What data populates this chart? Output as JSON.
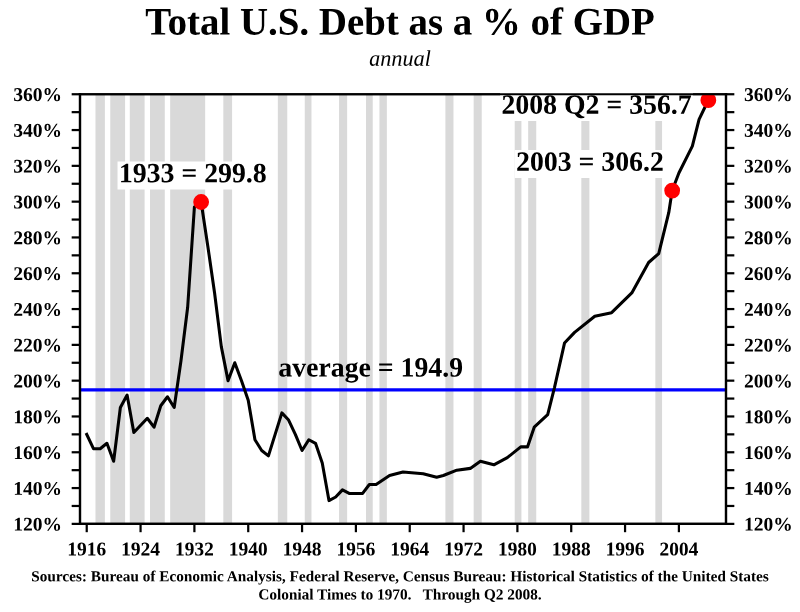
{
  "chart_data": {
    "type": "line",
    "title": "Total U.S. Debt as a % of GDP",
    "subtitle": "annual",
    "x": [
      1916,
      1917,
      1918,
      1919,
      1920,
      1921,
      1922,
      1923,
      1925,
      1926,
      1927,
      1928,
      1929,
      1930,
      1931,
      1932,
      1933,
      1934,
      1935,
      1936,
      1937,
      1938,
      1939,
      1940,
      1941,
      1942,
      1943,
      1944,
      1945,
      1946,
      1947,
      1948,
      1949,
      1950,
      1951,
      1952,
      1953,
      1954,
      1955,
      1957,
      1958,
      1959,
      1961,
      1963,
      1966,
      1968,
      1969,
      1971,
      1973,
      1974.5,
      1976.5,
      1978.5,
      1980.5,
      1981.5,
      1982.5,
      1984.5,
      1985.5,
      1987,
      1988.5,
      1991.5,
      1994,
      1997,
      1999.5,
      2001,
      2002.5,
      2003,
      2004,
      2006,
      2007,
      2008.375
    ],
    "series": [
      {
        "color": "#000000",
        "values": [
          170,
          162,
          162,
          165,
          155,
          185,
          192,
          171,
          179,
          174,
          186,
          191,
          185,
          211,
          241,
          297,
          299.8,
          275,
          249,
          219,
          200,
          210,
          200,
          189,
          167,
          161,
          158,
          170,
          182,
          178,
          170,
          161,
          167,
          165,
          154,
          133,
          135,
          139,
          137,
          137,
          142,
          142,
          147,
          149,
          148,
          146,
          147,
          150,
          151,
          155,
          153,
          157,
          163,
          163,
          174,
          181,
          196,
          221,
          227,
          236,
          238,
          249,
          266,
          271,
          294,
          306.2,
          316,
          331,
          346,
          356.7
        ]
      },
      {
        "type": "scatter",
        "color": "#ff0000",
        "x": [
          1933,
          2003,
          2008.375
        ],
        "values": [
          299.8,
          306.2,
          356.7
        ],
        "marker": "circle"
      }
    ],
    "xlim": [
      1915,
      2011
    ],
    "xticks": [
      1916,
      1924,
      1932,
      1940,
      1948,
      1956,
      1964,
      1972,
      1980,
      1988,
      1996,
      2004
    ],
    "ylim": [
      120,
      360
    ],
    "yticks": [
      {
        "value": 120,
        "label": "120%"
      },
      {
        "value": 130,
        "label": null
      },
      {
        "value": 140,
        "label": "140%"
      },
      {
        "value": 150,
        "label": null
      },
      {
        "value": 160,
        "label": "160%"
      },
      {
        "value": 170,
        "label": null
      },
      {
        "value": 180,
        "label": "180%"
      },
      {
        "value": 190,
        "label": null
      },
      {
        "value": 200,
        "label": "200%"
      },
      {
        "value": 210,
        "label": null
      },
      {
        "value": 220,
        "label": "220%"
      },
      {
        "value": 230,
        "label": null
      },
      {
        "value": 240,
        "label": "240%"
      },
      {
        "value": 250,
        "label": null
      },
      {
        "value": 260,
        "label": "260%"
      },
      {
        "value": 270,
        "label": null
      },
      {
        "value": 280,
        "label": "280%"
      },
      {
        "value": 290,
        "label": null
      },
      {
        "value": 300,
        "label": "300%"
      },
      {
        "value": 310,
        "label": null
      },
      {
        "value": 320,
        "label": "320%"
      },
      {
        "value": 330,
        "label": null
      },
      {
        "value": 340,
        "label": "340%"
      },
      {
        "value": 350,
        "label": null
      },
      {
        "value": 360,
        "label": "360%"
      }
    ],
    "y2lim": [
      120,
      360
    ],
    "y2ticks": [
      {
        "value": 120,
        "label": "120%"
      },
      {
        "value": 130,
        "label": null
      },
      {
        "value": 140,
        "label": "140%"
      },
      {
        "value": 150,
        "label": null
      },
      {
        "value": 160,
        "label": "160%"
      },
      {
        "value": 170,
        "label": null
      },
      {
        "value": 180,
        "label": "180%"
      },
      {
        "value": 190,
        "label": null
      },
      {
        "value": 200,
        "label": "200%"
      },
      {
        "value": 210,
        "label": null
      },
      {
        "value": 220,
        "label": "220%"
      },
      {
        "value": 230,
        "label": null
      },
      {
        "value": 240,
        "label": "240%"
      },
      {
        "value": 250,
        "label": null
      },
      {
        "value": 260,
        "label": "260%"
      },
      {
        "value": 270,
        "label": null
      },
      {
        "value": 280,
        "label": "280%"
      },
      {
        "value": 290,
        "label": null
      },
      {
        "value": 300,
        "label": "300%"
      },
      {
        "value": 310,
        "label": null
      },
      {
        "value": 320,
        "label": "320%"
      },
      {
        "value": 330,
        "label": null
      },
      {
        "value": 340,
        "label": "340%"
      },
      {
        "value": 350,
        "label": null
      },
      {
        "value": 360,
        "label": "360%"
      }
    ],
    "ref_lines": [
      {
        "axis": "y",
        "value": 194.9,
        "label": "average = 194.9",
        "color": "#0000ff"
      }
    ],
    "bands": [
      {
        "axis": "x",
        "from": 1917.3,
        "to": 1918.7,
        "color": "#d9d9d9"
      },
      {
        "axis": "x",
        "from": 1919.5,
        "to": 1921.7,
        "color": "#d9d9d9"
      },
      {
        "axis": "x",
        "from": 1922.4,
        "to": 1924.6,
        "color": "#d9d9d9"
      },
      {
        "axis": "x",
        "from": 1925.4,
        "to": 1927.6,
        "color": "#d9d9d9"
      },
      {
        "axis": "x",
        "from": 1928.4,
        "to": 1933.6,
        "color": "#d9d9d9"
      },
      {
        "axis": "x",
        "from": 1936.3,
        "to": 1937.6,
        "color": "#d9d9d9"
      },
      {
        "axis": "x",
        "from": 1944.4,
        "to": 1945.8,
        "color": "#d9d9d9"
      },
      {
        "axis": "x",
        "from": 1948.4,
        "to": 1949.4,
        "color": "#d9d9d9"
      },
      {
        "axis": "x",
        "from": 1953.5,
        "to": 1954.7,
        "color": "#d9d9d9"
      },
      {
        "axis": "x",
        "from": 1957.5,
        "to": 1958.5,
        "color": "#d9d9d9"
      },
      {
        "axis": "x",
        "from": 1959.5,
        "to": 1960.6,
        "color": "#d9d9d9"
      },
      {
        "axis": "x",
        "from": 1969.3,
        "to": 1970.5,
        "color": "#d9d9d9"
      },
      {
        "axis": "x",
        "from": 1973.5,
        "to": 1974.7,
        "color": "#d9d9d9"
      },
      {
        "axis": "x",
        "from": 1979.6,
        "to": 1980.6,
        "color": "#d9d9d9"
      },
      {
        "axis": "x",
        "from": 1981.6,
        "to": 1982.8,
        "color": "#d9d9d9"
      },
      {
        "axis": "x",
        "from": 1989.5,
        "to": 1990.7,
        "color": "#d9d9d9"
      },
      {
        "axis": "x",
        "from": 2000.5,
        "to": 2001.5,
        "color": "#d9d9d9"
      }
    ],
    "annotations": [
      {
        "text": "1933 = 299.8",
        "x": 1933,
        "y": 299.8
      },
      {
        "text": "2003 = 306.2",
        "x": 2003,
        "y": 306.2
      },
      {
        "text": "2008 Q2 = 356.7",
        "x": 2008.375,
        "y": 356.7
      },
      "Sources: Bureau of Economic Analysis, Federal Reserve, Census Bureau: Historical Statistics of the United States\nColonial Times to 1970.   Through Q2 2008."
    ],
    "grid": false,
    "legend": false,
    "marker": "none",
    "line_style": "solid"
  }
}
